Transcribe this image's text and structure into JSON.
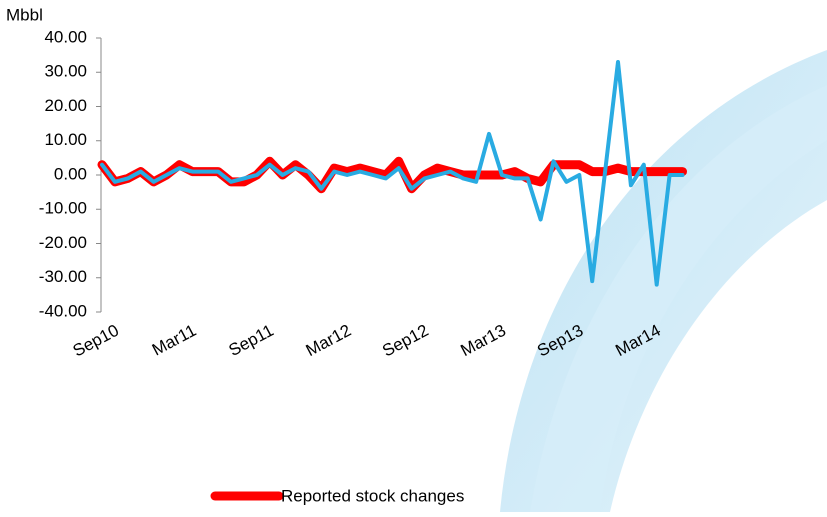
{
  "chart_data": {
    "type": "line",
    "y_label": "Mbbl",
    "categories": [
      "Sep10",
      null,
      null,
      null,
      null,
      null,
      "Mar11",
      null,
      null,
      null,
      null,
      null,
      "Sep11",
      null,
      null,
      null,
      null,
      null,
      "Mar12",
      null,
      null,
      null,
      null,
      null,
      "Sep12",
      null,
      null,
      null,
      null,
      null,
      "Mar13",
      null,
      null,
      null,
      null,
      null,
      "Sep13",
      null,
      null,
      null,
      null,
      null,
      "Mar14",
      null,
      null,
      null
    ],
    "series": [
      {
        "name": "Reported stock changes",
        "color": "#ff0000",
        "values": [
          3,
          -2,
          -1,
          1,
          -2,
          0,
          3,
          1,
          1,
          1,
          -2,
          -2,
          0,
          4,
          0,
          3,
          0,
          -4,
          2,
          1,
          2,
          1,
          0,
          4,
          -4,
          0,
          2,
          1,
          0,
          0,
          0,
          0,
          1,
          -1,
          -2,
          3,
          3,
          3,
          1,
          1,
          2,
          1,
          1,
          1,
          1,
          1
        ]
      },
      {
        "color": "#29abe2",
        "values": [
          3,
          -2,
          -1,
          1,
          -2,
          0,
          2,
          1,
          1,
          1,
          -2,
          -1,
          0,
          3,
          0,
          2,
          1,
          -4,
          1,
          0,
          1,
          0,
          -1,
          2,
          -4,
          -1,
          0,
          1,
          -1,
          -2,
          12,
          0,
          -1,
          -1,
          -13,
          4,
          -2,
          0,
          -31,
          1,
          33,
          -3,
          3,
          -32,
          0,
          0
        ]
      }
    ],
    "ylim": [
      -40,
      40
    ],
    "yticks": [
      {
        "value": -40,
        "label": "-40.00"
      },
      {
        "value": -30,
        "label": "-30.00"
      },
      {
        "value": -20,
        "label": "-20.00"
      },
      {
        "value": -10,
        "label": "-10.00"
      },
      {
        "value": 0,
        "label": "0.00"
      },
      {
        "value": 10,
        "label": "10.00"
      },
      {
        "value": 20,
        "label": "20.00"
      },
      {
        "value": 30,
        "label": "30.00"
      },
      {
        "value": 40,
        "label": "40.00"
      }
    ],
    "legend": "bottom"
  }
}
